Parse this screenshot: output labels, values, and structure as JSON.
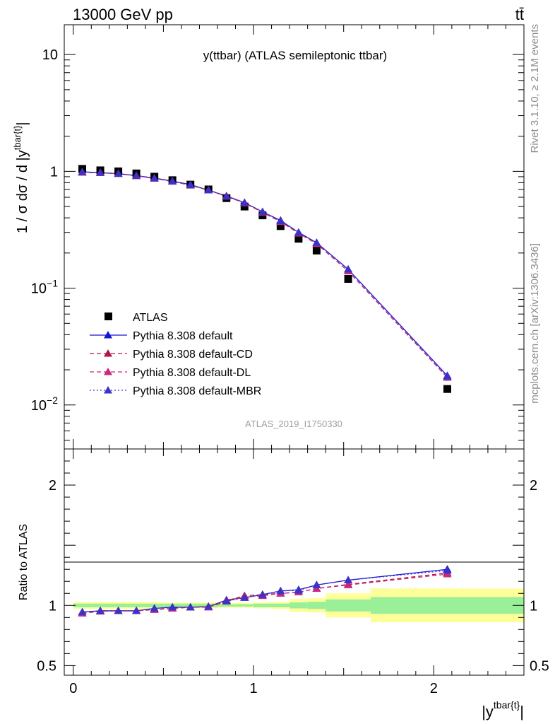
{
  "header": {
    "left": "13000 GeV pp",
    "right": "tt̄"
  },
  "side_labels": {
    "rivet": "Rivet 3.1.10, ≥ 2.1M events",
    "mcplots": "mcplots.cern.ch [arXiv:1306.3436]"
  },
  "chart_data": [
    {
      "type": "scatter",
      "panel": "main",
      "title": "y(ttbar) (ATLAS semileptonic ttbar)",
      "watermark": "ATLAS_2019_I1750330",
      "ylabel": "1 / σ dσ / d |y^{tbar{t}}|",
      "ylabel_parts": {
        "main": "1 / σ dσ / d |y",
        "sup": "tbar{t}",
        "end": "|"
      },
      "yscale": "log",
      "ylim": [
        0.0042,
        18
      ],
      "xlim": [
        -0.05,
        2.5
      ],
      "y_ticks": [
        {
          "value": 10,
          "base": "10",
          "exp": ""
        },
        {
          "value": 1,
          "base": "1",
          "exp": ""
        },
        {
          "value": 0.1,
          "base": "10",
          "exp": "−1"
        },
        {
          "value": 0.01,
          "base": "10",
          "exp": "−2"
        }
      ],
      "legend_position": "bottom-left",
      "x": [
        0.05,
        0.15,
        0.25,
        0.35,
        0.45,
        0.55,
        0.65,
        0.75,
        0.85,
        0.95,
        1.05,
        1.15,
        1.25,
        1.35,
        1.525,
        2.075
      ],
      "series": [
        {
          "name": "ATLAS",
          "style": "data",
          "color": "#000000",
          "values": [
            1.05,
            1.02,
            1.0,
            0.96,
            0.9,
            0.84,
            0.77,
            0.7,
            0.59,
            0.5,
            0.42,
            0.34,
            0.265,
            0.21,
            0.12,
            0.0137
          ]
        },
        {
          "name": "Pythia 8.308 default",
          "style": "solid",
          "color": "#1414d2",
          "values": [
            0.99,
            0.975,
            0.955,
            0.92,
            0.875,
            0.825,
            0.77,
            0.69,
            0.615,
            0.54,
            0.45,
            0.38,
            0.3,
            0.245,
            0.145,
            0.0178
          ]
        },
        {
          "name": "Pythia 8.308 default-CD",
          "style": "dashed",
          "color": "#b4144b",
          "values": [
            0.98,
            0.975,
            0.955,
            0.915,
            0.87,
            0.82,
            0.76,
            0.69,
            0.615,
            0.54,
            0.45,
            0.375,
            0.295,
            0.24,
            0.14,
            0.0172
          ]
        },
        {
          "name": "Pythia 8.308 default-DL",
          "style": "dashed",
          "color": "#c8287d",
          "values": [
            0.98,
            0.97,
            0.955,
            0.915,
            0.87,
            0.82,
            0.76,
            0.69,
            0.61,
            0.535,
            0.445,
            0.37,
            0.295,
            0.24,
            0.14,
            0.0172
          ]
        },
        {
          "name": "Pythia 8.308 default-MBR",
          "style": "dotted",
          "color": "#3c32c8",
          "values": [
            0.99,
            0.975,
            0.955,
            0.92,
            0.875,
            0.825,
            0.765,
            0.69,
            0.61,
            0.54,
            0.45,
            0.375,
            0.3,
            0.245,
            0.145,
            0.0176
          ]
        }
      ]
    },
    {
      "type": "line",
      "panel": "ratio",
      "ylabel": "Ratio to ATLAS",
      "ylim": [
        0.42,
        2.3
      ],
      "xlim": [
        -0.05,
        2.5
      ],
      "xlabel_parts": {
        "main": "|y",
        "sup": "tbar{t}",
        "end": "|"
      },
      "x_ticks": [
        {
          "value": 0,
          "label": "0"
        },
        {
          "value": 1,
          "label": "1"
        },
        {
          "value": 2,
          "label": "2"
        }
      ],
      "y_ticks": [
        {
          "value": 0.5,
          "label": "0.5"
        },
        {
          "value": 1,
          "label": "1"
        },
        {
          "value": 2,
          "label": "2"
        }
      ],
      "bins": [
        {
          "lo": 0.0,
          "hi": 0.1,
          "green": 0.015,
          "yellow": 0.03
        },
        {
          "lo": 0.1,
          "hi": 0.2,
          "green": 0.015,
          "yellow": 0.03
        },
        {
          "lo": 0.2,
          "hi": 0.3,
          "green": 0.015,
          "yellow": 0.03
        },
        {
          "lo": 0.3,
          "hi": 0.4,
          "green": 0.015,
          "yellow": 0.03
        },
        {
          "lo": 0.4,
          "hi": 0.5,
          "green": 0.015,
          "yellow": 0.03
        },
        {
          "lo": 0.5,
          "hi": 0.6,
          "green": 0.015,
          "yellow": 0.025
        },
        {
          "lo": 0.6,
          "hi": 0.7,
          "green": 0.015,
          "yellow": 0.025
        },
        {
          "lo": 0.7,
          "hi": 0.8,
          "green": 0.015,
          "yellow": 0.025
        },
        {
          "lo": 0.8,
          "hi": 0.9,
          "green": 0.01,
          "yellow": 0.02
        },
        {
          "lo": 0.9,
          "hi": 1.0,
          "green": 0.01,
          "yellow": 0.02
        },
        {
          "lo": 1.0,
          "hi": 1.1,
          "green": 0.015,
          "yellow": 0.025
        },
        {
          "lo": 1.1,
          "hi": 1.2,
          "green": 0.015,
          "yellow": 0.03
        },
        {
          "lo": 1.2,
          "hi": 1.3,
          "green": 0.025,
          "yellow": 0.055
        },
        {
          "lo": 1.3,
          "hi": 1.4,
          "green": 0.03,
          "yellow": 0.06
        },
        {
          "lo": 1.4,
          "hi": 1.65,
          "green": 0.05,
          "yellow": 0.1
        },
        {
          "lo": 1.65,
          "hi": 2.5,
          "green": 0.07,
          "yellow": 0.14
        }
      ],
      "series": [
        {
          "name": "Pythia 8.308 default",
          "style": "solid",
          "color": "#1414d2",
          "values": [
            0.945,
            0.955,
            0.955,
            0.955,
            0.975,
            0.985,
            0.985,
            0.99,
            1.045,
            1.065,
            1.09,
            1.12,
            1.13,
            1.17,
            1.21,
            1.3
          ]
        },
        {
          "name": "Pythia 8.308 default-CD",
          "style": "dashed",
          "color": "#b4144b",
          "values": [
            0.935,
            0.955,
            0.955,
            0.955,
            0.965,
            0.975,
            0.985,
            0.99,
            1.04,
            1.08,
            1.09,
            1.1,
            1.11,
            1.14,
            1.175,
            1.27
          ]
        },
        {
          "name": "Pythia 8.308 default-DL",
          "style": "dashed",
          "color": "#c8287d",
          "values": [
            0.935,
            0.95,
            0.955,
            0.955,
            0.965,
            0.975,
            0.985,
            0.985,
            1.035,
            1.07,
            1.08,
            1.1,
            1.11,
            1.14,
            1.17,
            1.26
          ]
        },
        {
          "name": "Pythia 8.308 default-MBR",
          "style": "dotted",
          "color": "#3c32c8",
          "values": [
            0.945,
            0.955,
            0.955,
            0.955,
            0.975,
            0.985,
            0.985,
            0.99,
            1.035,
            1.065,
            1.09,
            1.12,
            1.125,
            1.17,
            1.21,
            1.29
          ]
        }
      ]
    }
  ]
}
